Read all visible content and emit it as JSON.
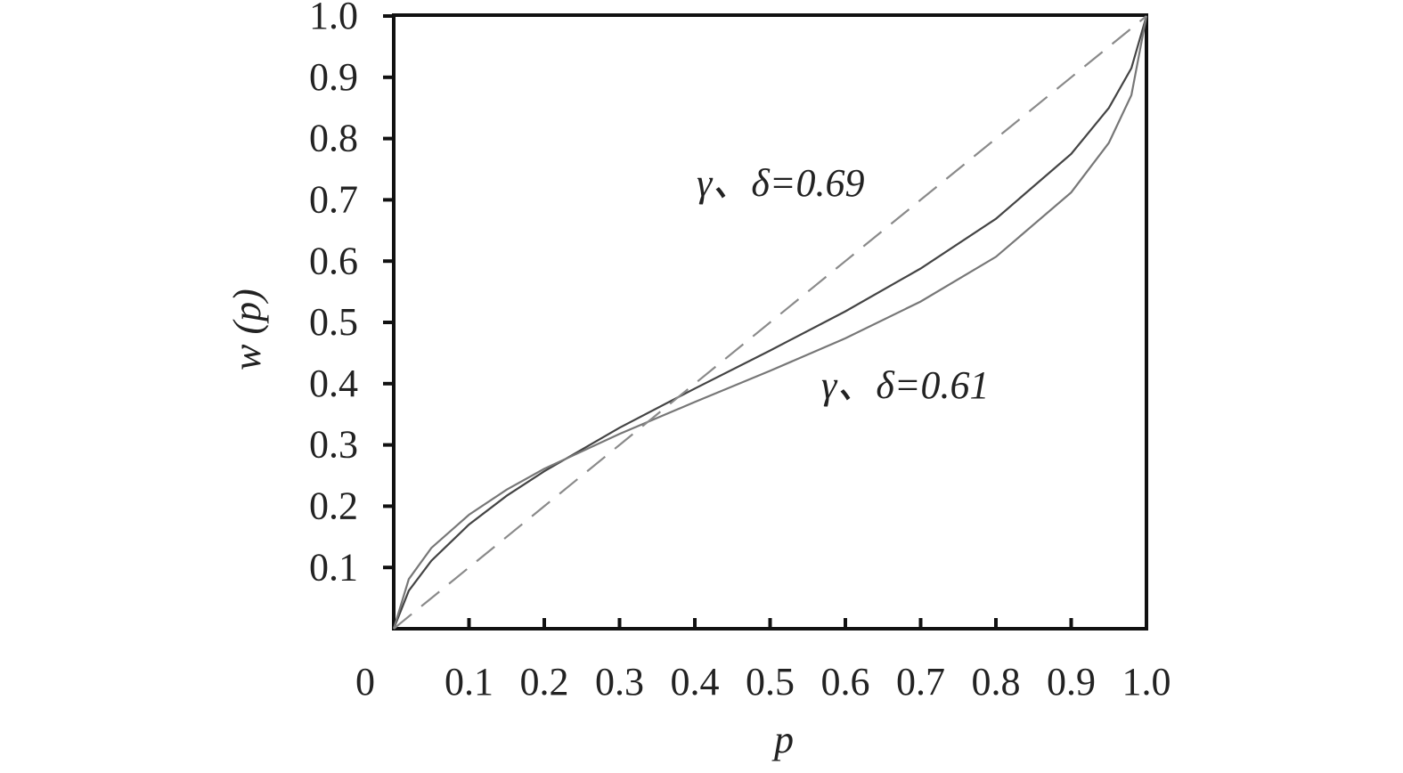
{
  "chart_data": {
    "type": "line",
    "xlabel": "p",
    "ylabel": "w (p)",
    "annotations": [
      "γ、δ=0.69",
      "γ、δ=0.61"
    ],
    "x": [
      0,
      0.02,
      0.05,
      0.1,
      0.15,
      0.2,
      0.3,
      0.4,
      0.5,
      0.6,
      0.7,
      0.8,
      0.9,
      0.95,
      0.98,
      1
    ],
    "series": [
      {
        "color": "#444444",
        "dash": false,
        "values": [
          0,
          0.062,
          0.111,
          0.17,
          0.217,
          0.257,
          0.328,
          0.392,
          0.454,
          0.518,
          0.588,
          0.669,
          0.775,
          0.85,
          0.915,
          1
        ]
      },
      {
        "color": "#777777",
        "dash": false,
        "values": [
          0,
          0.081,
          0.132,
          0.186,
          0.227,
          0.261,
          0.318,
          0.37,
          0.421,
          0.474,
          0.534,
          0.607,
          0.712,
          0.793,
          0.871,
          1
        ]
      },
      {
        "color": "#8a8a8a",
        "dash": true,
        "values": [
          0,
          0.02,
          0.05,
          0.1,
          0.15,
          0.2,
          0.3,
          0.4,
          0.5,
          0.6,
          0.7,
          0.8,
          0.9,
          0.95,
          0.98,
          1
        ]
      }
    ],
    "xlim": [
      0,
      1
    ],
    "ylim": [
      0,
      1
    ],
    "xticks": [
      0,
      0.1,
      0.2,
      0.3,
      0.4,
      0.5,
      0.6,
      0.7,
      0.8,
      0.9,
      {
        "value": 1,
        "label": "1.0"
      }
    ],
    "yticks": [
      0.1,
      0.2,
      0.3,
      0.4,
      0.5,
      0.6,
      0.7,
      0.8,
      0.9,
      {
        "value": 1,
        "label": "1.0"
      }
    ]
  }
}
